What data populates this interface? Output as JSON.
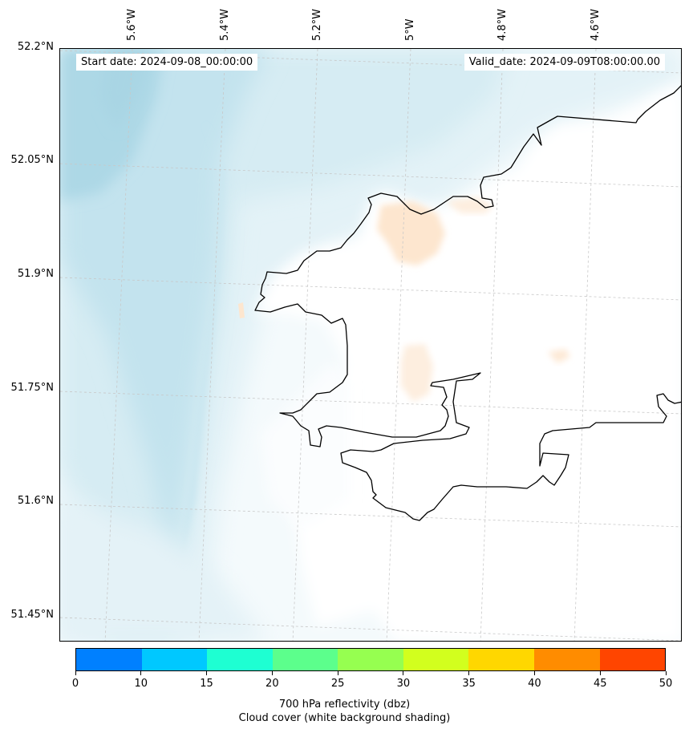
{
  "map": {
    "lat_labels": [
      "52.2°N",
      "52.05°N",
      "51.9°N",
      "51.75°N",
      "51.6°N",
      "51.45°N"
    ],
    "lon_labels": [
      "5.6°W",
      "5.4°W",
      "5.2°W",
      "5°W",
      "4.8°W",
      "4.6°W"
    ],
    "start_date": "Start date: 2024-09-08_00:00:00",
    "valid_date": "Valid_date: 2024-09-09T08:00:00.00",
    "coastline_color": "#000000",
    "cloud_color": "#add8e6",
    "reflectivity_color": "#fde6cf"
  },
  "colorbar": {
    "ticks": [
      "0",
      "10",
      "15",
      "20",
      "25",
      "30",
      "35",
      "40",
      "45",
      "50"
    ],
    "colors": [
      "#0080ff",
      "#00c8ff",
      "#1effd2",
      "#5cff8c",
      "#96ff50",
      "#d2ff1e",
      "#ffd700",
      "#ff8c00",
      "#ff4500"
    ],
    "label_line1": "700 hPa reflectivity (dbz)",
    "label_line2": "Cloud cover (white background shading)"
  }
}
